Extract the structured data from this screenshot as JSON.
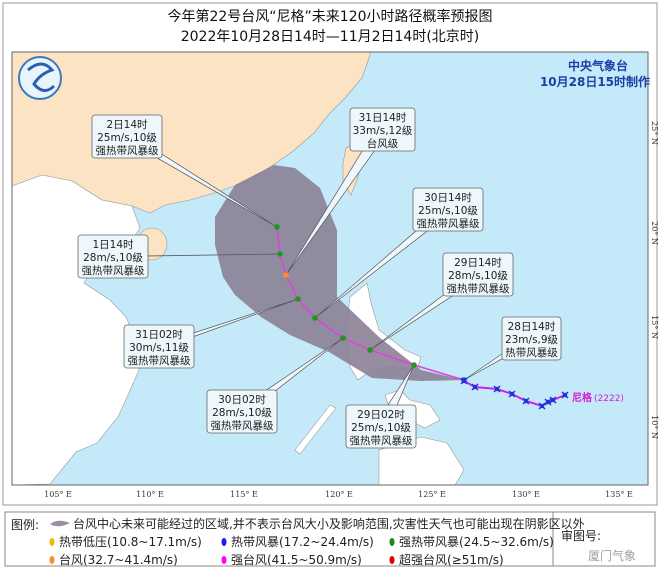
{
  "header": {
    "title": "今年第22号台风“尼格”未来120小时路径概率预报图",
    "subtitle": "2022年10月28日14时—11月2日14时(北京时)"
  },
  "agency": {
    "name": "中央气象台",
    "issued": "10月28日15时制作",
    "logo": "cma-logo-icon"
  },
  "map": {
    "colors": {
      "sea": "#c4e9f9",
      "china": "#fbe3c4",
      "other_land": "#ffffff",
      "cone": "#8a7d93",
      "track_forecast": "#e040e0",
      "track_past": "#cc22ee"
    },
    "longitudes": [
      "105° E",
      "110° E",
      "115° E",
      "120° E",
      "125° E",
      "130° E",
      "135° E"
    ],
    "latitudes": [
      "25° N",
      "20° N",
      "15° N",
      "10° N"
    ],
    "typhoon_label": "尼格",
    "typhoon_code": "(2222)",
    "forecasts": [
      {
        "time": "2日14时",
        "wind": "25m/s,10级",
        "level": "强热带风暴级",
        "color": "#1a9a1a"
      },
      {
        "time": "31日14时",
        "wind": "33m/s,12级",
        "level": "台风级",
        "color": "#ff8c2a"
      },
      {
        "time": "30日14时",
        "wind": "25m/s,10级",
        "level": "强热带风暴级",
        "color": "#1a9a1a"
      },
      {
        "time": "1日14时",
        "wind": "28m/s,10级",
        "level": "强热带风暴级",
        "color": "#1a9a1a"
      },
      {
        "time": "29日14时",
        "wind": "28m/s,10级",
        "level": "强热带风暴级",
        "color": "#1a9a1a"
      },
      {
        "time": "28日14时",
        "wind": "23m/s,9级",
        "level": "热带风暴级",
        "color": "#2233dd"
      },
      {
        "time": "31日02时",
        "wind": "30m/s,11级",
        "level": "强热带风暴级",
        "color": "#1a9a1a"
      },
      {
        "time": "30日02时",
        "wind": "28m/s,10级",
        "level": "强热带风暴级",
        "color": "#1a9a1a"
      },
      {
        "time": "29日02时",
        "wind": "25m/s,10级",
        "level": "强热带风暴级",
        "color": "#1a9a1a"
      }
    ]
  },
  "legend": {
    "heading": "图例:",
    "cone_text": "台风中心未来可能经过的区域,并不表示台风大小及影响范围,灾害性天气也可能出现在阴影区以外",
    "items": [
      {
        "label": "热带低压(10.8~17.1m/s)",
        "color": "#e8c000"
      },
      {
        "label": "热带风暴(17.2~24.4m/s)",
        "color": "#1a1aff"
      },
      {
        "label": "强热带风暴(24.5~32.6m/s)",
        "color": "#1a8a1a"
      },
      {
        "label": "台风(32.7~41.4m/s)",
        "color": "#ff8c2a"
      },
      {
        "label": "强台风(41.5~50.9m/s)",
        "color": "#ff00ff"
      },
      {
        "label": "超强台风(≥51m/s)",
        "color": "#e00000"
      }
    ],
    "review_label": "审图号:",
    "watermark": "厦门气象"
  }
}
